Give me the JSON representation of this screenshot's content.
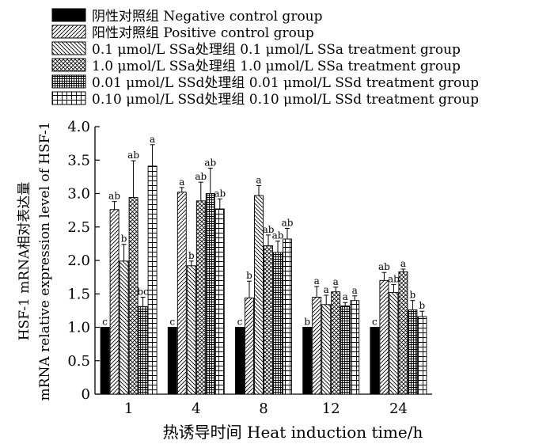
{
  "chart_data": {
    "type": "bar",
    "categories": [
      "1",
      "4",
      "8",
      "12",
      "24"
    ],
    "xlabel": "热诱导时间  Heat induction  time/h",
    "ylabel_cn": "HSF-1 mRNA相对表达量",
    "ylabel_en": "mRNA relative expression level of HSF-1",
    "ylim": [
      0,
      4.0
    ],
    "yticks": [
      "0",
      "0.5",
      "1.0",
      "1.5",
      "2.0",
      "2.5",
      "3.0",
      "3.5",
      "4.0"
    ],
    "legend_position": "top",
    "series": [
      {
        "name": "阴性对照组 Negative control group",
        "pattern": "solid",
        "values": [
          1.0,
          1.0,
          1.0,
          1.0,
          1.0
        ],
        "errors": [
          0,
          0,
          0,
          0,
          0
        ],
        "letters": [
          "c",
          "c",
          "c",
          "b",
          "c"
        ]
      },
      {
        "name": "阳性对照组 Positive control group",
        "pattern": "diag-right",
        "values": [
          2.76,
          3.02,
          1.44,
          1.45,
          1.7
        ],
        "errors": [
          0.12,
          0.07,
          0.25,
          0.16,
          0.12
        ],
        "letters": [
          "ab",
          "a",
          "b",
          "a",
          "ab"
        ]
      },
      {
        "name": "0.1 μmol/L SSa处理组 0.1 μmol/L SSa treatment group",
        "pattern": "diag-left",
        "values": [
          1.99,
          1.92,
          2.97,
          1.34,
          1.52
        ],
        "errors": [
          0.25,
          0.07,
          0.15,
          0.14,
          0.12
        ],
        "letters": [
          "b",
          "b",
          "a",
          "a",
          "ab"
        ]
      },
      {
        "name": "1.0 μmol/L SSa处理组 1.0 μmol/L SSa treatment group",
        "pattern": "crosshatch",
        "values": [
          2.94,
          2.89,
          2.22,
          1.53,
          1.83
        ],
        "errors": [
          0.55,
          0.28,
          0.16,
          0.07,
          0.04
        ],
        "letters": [
          "ab",
          "ab",
          "ab",
          "a",
          "a"
        ]
      },
      {
        "name": "0.01 μmol/L SSd处理组 0.01 μmol/L SSd treatment group",
        "pattern": "dense-grid",
        "values": [
          1.31,
          3.0,
          2.12,
          1.32,
          1.26
        ],
        "errors": [
          0.14,
          0.38,
          0.17,
          0.05,
          0.14
        ],
        "letters": [
          "bc",
          "ab",
          "ab",
          "a",
          "b"
        ]
      },
      {
        "name": "0.10 μmol/L SSd处理组 0.10 μmol/L SSd treatment group",
        "pattern": "sparse-grid",
        "values": [
          3.41,
          2.77,
          2.32,
          1.4,
          1.16
        ],
        "errors": [
          0.32,
          0.15,
          0.16,
          0.07,
          0.08
        ],
        "letters": [
          "a",
          "ab",
          "ab",
          "a",
          "b"
        ]
      }
    ]
  }
}
